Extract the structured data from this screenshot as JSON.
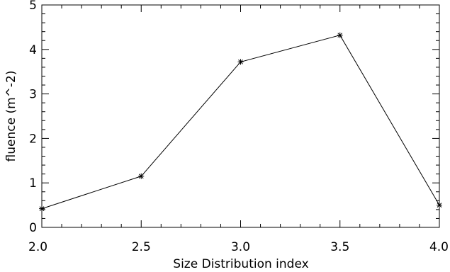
{
  "chart_data": {
    "type": "line",
    "xlabel": "Size Distribution index",
    "ylabel": "fluence (m^-2)",
    "xlim": [
      2.0,
      4.0
    ],
    "ylim": [
      0,
      5
    ],
    "x_ticks": [
      "2.0",
      "2.5",
      "3.0",
      "3.5",
      "4.0"
    ],
    "y_ticks": [
      "0",
      "1",
      "2",
      "3",
      "4",
      "5"
    ],
    "grid": false,
    "series": [
      {
        "x": [
          2.0,
          2.5,
          3.0,
          3.5,
          4.0
        ],
        "y": [
          0.42,
          1.15,
          3.72,
          4.32,
          0.5
        ],
        "color": "#000000",
        "marker": "asterisk"
      }
    ]
  }
}
